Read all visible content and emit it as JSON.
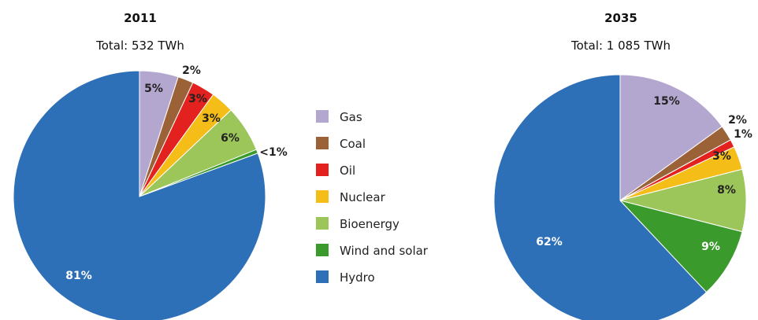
{
  "chart_data": [
    {
      "type": "pie",
      "title": "2011",
      "subtitle": "Total:  532 TWh",
      "slices": [
        {
          "name": "Gas",
          "value": 5,
          "label": "5%"
        },
        {
          "name": "Coal",
          "value": 2,
          "label": "2%"
        },
        {
          "name": "Oil",
          "value": 3,
          "label": "3%"
        },
        {
          "name": "Nuclear",
          "value": 3,
          "label": "3%"
        },
        {
          "name": "Bioenergy",
          "value": 6,
          "label": "6%"
        },
        {
          "name": "Wind and solar",
          "value": 0.5,
          "label": "<1%"
        },
        {
          "name": "Hydro",
          "value": 81,
          "label": "81%"
        }
      ]
    },
    {
      "type": "pie",
      "title": "2035",
      "subtitle": "Total:  1 085 TWh",
      "slices": [
        {
          "name": "Gas",
          "value": 15,
          "label": "15%"
        },
        {
          "name": "Coal",
          "value": 2,
          "label": "2%"
        },
        {
          "name": "Oil",
          "value": 1,
          "label": "1%"
        },
        {
          "name": "Nuclear",
          "value": 3,
          "label": "3%"
        },
        {
          "name": "Bioenergy",
          "value": 8,
          "label": "8%"
        },
        {
          "name": "Wind and solar",
          "value": 9,
          "label": "9%"
        },
        {
          "name": "Hydro",
          "value": 62,
          "label": "62%"
        }
      ]
    }
  ],
  "legend": [
    {
      "name": "Gas",
      "color": "#b4a7cf"
    },
    {
      "name": "Coal",
      "color": "#9a6236"
    },
    {
      "name": "Oil",
      "color": "#e3221f"
    },
    {
      "name": "Nuclear",
      "color": "#f5bd18"
    },
    {
      "name": "Bioenergy",
      "color": "#9cc55a"
    },
    {
      "name": "Wind and solar",
      "color": "#3a9a2b"
    },
    {
      "name": "Hydro",
      "color": "#2e70b8"
    }
  ]
}
